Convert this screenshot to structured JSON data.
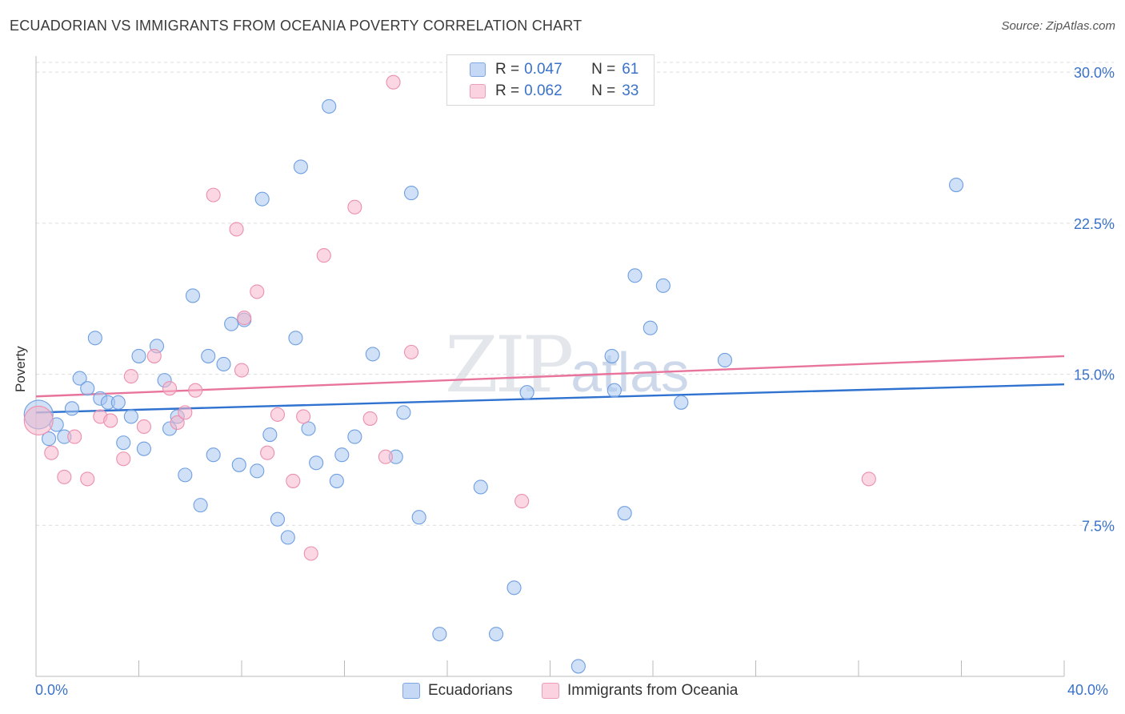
{
  "title": "ECUADORIAN VS IMMIGRANTS FROM OCEANIA POVERTY CORRELATION CHART",
  "source": "Source: ZipAtlas.com",
  "watermark": {
    "zip": "ZIP",
    "atlas": "atlas"
  },
  "legend": {
    "rows": [
      {
        "r_label": "R = ",
        "r_value": "0.047",
        "n_label": "N = ",
        "n_value": "61",
        "color": "#a8c6f0"
      },
      {
        "r_label": "R = ",
        "r_value": "0.062",
        "n_label": "N = ",
        "n_value": "33",
        "color": "#f6b6cb"
      }
    ]
  },
  "bottom_legend": [
    "Ecuadorians",
    "Immigrants from Oceania"
  ],
  "chart_data": {
    "type": "scatter",
    "title": "ECUADORIAN VS IMMIGRANTS FROM OCEANIA POVERTY CORRELATION CHART",
    "xlabel": "",
    "ylabel": "Poverty",
    "x_tick_labels": [
      "0.0%",
      "40.0%"
    ],
    "y_tick_labels": [
      "7.5%",
      "15.0%",
      "22.5%",
      "30.0%"
    ],
    "y_ticks": [
      7.5,
      15.0,
      22.5,
      30.0
    ],
    "xlim": [
      0,
      40
    ],
    "ylim": [
      0,
      30.8
    ],
    "grid": true,
    "series": [
      {
        "name": "Ecuadorians",
        "color": "#a8c6f0",
        "stroke": "#6f9fe0",
        "trend": {
          "x": [
            0,
            40
          ],
          "y": [
            13.1,
            14.5
          ],
          "color": "#2f72cf"
        },
        "points": [
          {
            "x": 0.1,
            "y": 13.0,
            "big": true
          },
          {
            "x": 0.5,
            "y": 11.8
          },
          {
            "x": 0.8,
            "y": 12.5
          },
          {
            "x": 1.1,
            "y": 11.9
          },
          {
            "x": 1.4,
            "y": 13.3
          },
          {
            "x": 1.7,
            "y": 14.8
          },
          {
            "x": 2.0,
            "y": 14.3
          },
          {
            "x": 2.3,
            "y": 16.8
          },
          {
            "x": 2.5,
            "y": 13.8
          },
          {
            "x": 2.8,
            "y": 13.6
          },
          {
            "x": 3.2,
            "y": 13.6
          },
          {
            "x": 3.4,
            "y": 11.6
          },
          {
            "x": 3.7,
            "y": 12.9
          },
          {
            "x": 4.0,
            "y": 15.9
          },
          {
            "x": 4.2,
            "y": 11.3
          },
          {
            "x": 4.7,
            "y": 16.4
          },
          {
            "x": 5.0,
            "y": 14.7
          },
          {
            "x": 5.2,
            "y": 12.3
          },
          {
            "x": 5.5,
            "y": 12.9
          },
          {
            "x": 5.8,
            "y": 10.0
          },
          {
            "x": 6.1,
            "y": 18.9
          },
          {
            "x": 6.4,
            "y": 8.5
          },
          {
            "x": 6.7,
            "y": 15.9
          },
          {
            "x": 6.9,
            "y": 11.0
          },
          {
            "x": 7.3,
            "y": 15.5
          },
          {
            "x": 7.6,
            "y": 17.5
          },
          {
            "x": 7.9,
            "y": 10.5
          },
          {
            "x": 8.1,
            "y": 17.7
          },
          {
            "x": 8.6,
            "y": 10.2
          },
          {
            "x": 8.8,
            "y": 23.7
          },
          {
            "x": 9.1,
            "y": 12.0
          },
          {
            "x": 9.4,
            "y": 7.8
          },
          {
            "x": 9.8,
            "y": 6.9
          },
          {
            "x": 10.1,
            "y": 16.8
          },
          {
            "x": 10.3,
            "y": 25.3
          },
          {
            "x": 10.6,
            "y": 12.3
          },
          {
            "x": 10.9,
            "y": 10.6
          },
          {
            "x": 11.4,
            "y": 28.3
          },
          {
            "x": 11.7,
            "y": 9.7
          },
          {
            "x": 11.9,
            "y": 11.0
          },
          {
            "x": 12.4,
            "y": 11.9
          },
          {
            "x": 13.1,
            "y": 16.0
          },
          {
            "x": 14.0,
            "y": 10.9
          },
          {
            "x": 14.3,
            "y": 13.1
          },
          {
            "x": 14.6,
            "y": 24.0
          },
          {
            "x": 14.9,
            "y": 7.9
          },
          {
            "x": 15.7,
            "y": 2.1
          },
          {
            "x": 17.3,
            "y": 9.4
          },
          {
            "x": 17.9,
            "y": 2.1
          },
          {
            "x": 18.6,
            "y": 4.4
          },
          {
            "x": 19.1,
            "y": 14.1
          },
          {
            "x": 21.1,
            "y": 0.5
          },
          {
            "x": 22.4,
            "y": 15.9
          },
          {
            "x": 22.5,
            "y": 14.2
          },
          {
            "x": 22.9,
            "y": 8.1
          },
          {
            "x": 23.3,
            "y": 19.9
          },
          {
            "x": 23.9,
            "y": 17.3
          },
          {
            "x": 24.4,
            "y": 19.4
          },
          {
            "x": 25.1,
            "y": 13.6
          },
          {
            "x": 26.8,
            "y": 15.7
          },
          {
            "x": 35.8,
            "y": 24.4
          }
        ]
      },
      {
        "name": "Immigrants from Oceania",
        "color": "#f6b6cb",
        "stroke": "#ec8fae",
        "trend": {
          "x": [
            0,
            40
          ],
          "y": [
            13.9,
            15.9
          ],
          "color": "#e8749c"
        },
        "points": [
          {
            "x": 0.1,
            "y": 12.7,
            "big": true
          },
          {
            "x": 0.6,
            "y": 11.1
          },
          {
            "x": 1.1,
            "y": 9.9
          },
          {
            "x": 1.5,
            "y": 11.9
          },
          {
            "x": 2.0,
            "y": 9.8
          },
          {
            "x": 2.5,
            "y": 12.9
          },
          {
            "x": 2.9,
            "y": 12.7
          },
          {
            "x": 3.4,
            "y": 10.8
          },
          {
            "x": 3.7,
            "y": 14.9
          },
          {
            "x": 4.2,
            "y": 12.4
          },
          {
            "x": 4.6,
            "y": 15.9
          },
          {
            "x": 5.2,
            "y": 14.3
          },
          {
            "x": 5.5,
            "y": 12.6
          },
          {
            "x": 5.8,
            "y": 13.1
          },
          {
            "x": 6.2,
            "y": 14.2
          },
          {
            "x": 6.9,
            "y": 23.9
          },
          {
            "x": 7.8,
            "y": 22.2
          },
          {
            "x": 8.0,
            "y": 15.2
          },
          {
            "x": 8.1,
            "y": 17.8
          },
          {
            "x": 8.6,
            "y": 19.1
          },
          {
            "x": 9.0,
            "y": 11.1
          },
          {
            "x": 9.4,
            "y": 13.0
          },
          {
            "x": 10.0,
            "y": 9.7
          },
          {
            "x": 10.4,
            "y": 12.9
          },
          {
            "x": 10.7,
            "y": 6.1
          },
          {
            "x": 11.2,
            "y": 20.9
          },
          {
            "x": 12.4,
            "y": 23.3
          },
          {
            "x": 13.0,
            "y": 12.8
          },
          {
            "x": 13.6,
            "y": 10.9
          },
          {
            "x": 13.9,
            "y": 29.5
          },
          {
            "x": 14.6,
            "y": 16.1
          },
          {
            "x": 18.9,
            "y": 8.7
          },
          {
            "x": 32.4,
            "y": 9.8
          }
        ]
      }
    ]
  }
}
